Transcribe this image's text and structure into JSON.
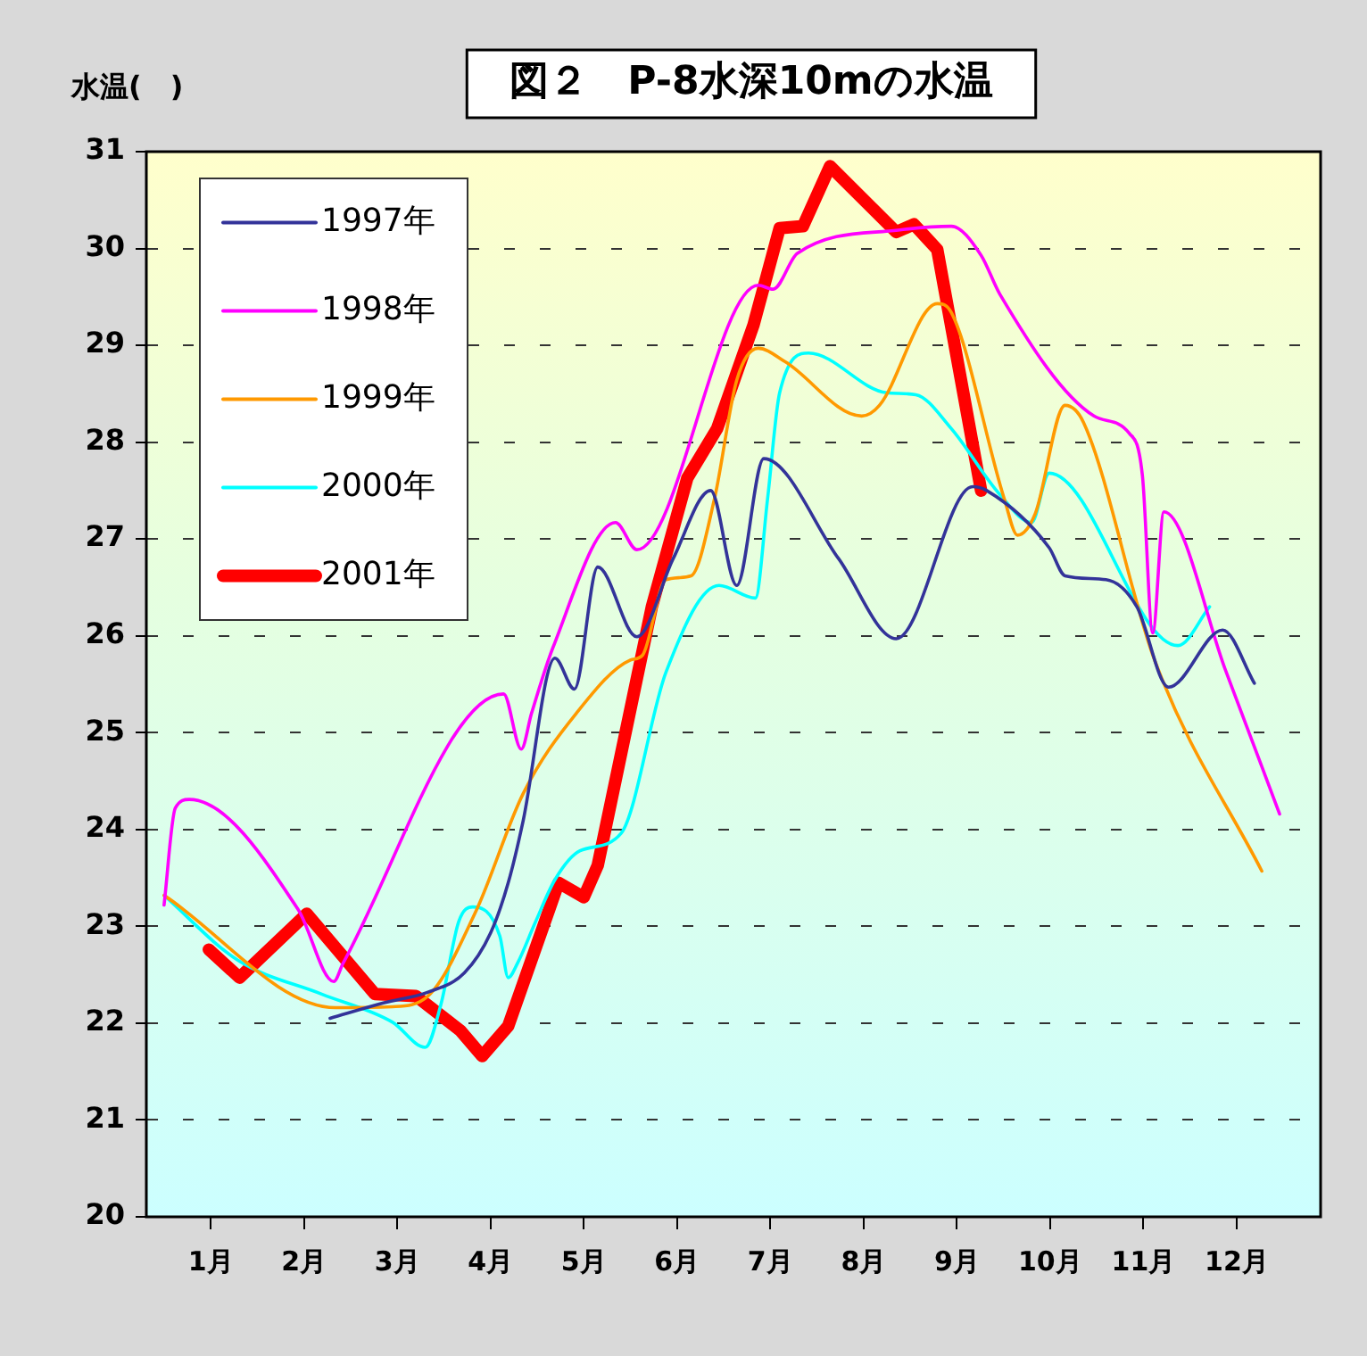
{
  "chart_data": {
    "type": "line",
    "title": "図２　P-8水深10mの水温",
    "ylabel": "水温(　)",
    "xlim": [
      0.31,
      12.9
    ],
    "xticks": [
      {
        "value": 1,
        "label": "1月"
      },
      {
        "value": 2,
        "label": "2月"
      },
      {
        "value": 3,
        "label": "3月"
      },
      {
        "value": 4,
        "label": "4月"
      },
      {
        "value": 5,
        "label": "5月"
      },
      {
        "value": 6,
        "label": "6月"
      },
      {
        "value": 7,
        "label": "7月"
      },
      {
        "value": 8,
        "label": "8月"
      },
      {
        "value": 9,
        "label": "9月"
      },
      {
        "value": 10,
        "label": "10月"
      },
      {
        "value": 11,
        "label": "11月"
      },
      {
        "value": 12,
        "label": "12月"
      }
    ],
    "ylim": [
      20,
      31
    ],
    "yticks": [
      20,
      21,
      22,
      23,
      24,
      25,
      26,
      27,
      28,
      29,
      30,
      31
    ],
    "grid": "y",
    "legend": "top left",
    "marker": "none",
    "line_style": "solid",
    "series": [
      {
        "name": "1997年",
        "color": "#333399",
        "x": [
          2.28,
          2.86,
          3.33,
          3.72,
          4.0,
          4.19,
          4.35,
          4.69,
          4.9,
          5.15,
          5.57,
          5.96,
          6.36,
          6.64,
          6.93,
          7.73,
          8.35,
          9.17,
          9.32,
          9.99,
          10.16,
          10.6,
          10.93,
          11.27,
          11.85,
          12.19
        ],
        "values": [
          22.05,
          22.21,
          22.32,
          22.52,
          22.93,
          23.45,
          24.09,
          25.77,
          25.45,
          26.71,
          25.99,
          26.8,
          27.5,
          26.52,
          27.83,
          26.8,
          25.97,
          27.54,
          27.5,
          26.91,
          26.62,
          26.58,
          26.3,
          25.47,
          26.06,
          25.51
        ]
      },
      {
        "name": "1998年",
        "color": "#ff00ff",
        "x": [
          0.5,
          0.62,
          0.77,
          1.94,
          2.32,
          2.42,
          4.14,
          4.33,
          4.44,
          4.67,
          5.34,
          5.57,
          6.87,
          7.03,
          7.29,
          8.37,
          8.94,
          9.26,
          9.46,
          10.47,
          10.85,
          10.99,
          11.1,
          11.22,
          11.89,
          12.46
        ],
        "values": [
          23.22,
          24.22,
          24.31,
          23.17,
          22.43,
          22.62,
          25.4,
          24.83,
          25.2,
          25.88,
          27.17,
          26.89,
          29.62,
          29.58,
          29.95,
          30.19,
          30.23,
          29.93,
          29.53,
          28.27,
          28.09,
          27.65,
          26.03,
          27.28,
          25.62,
          24.16
        ]
      },
      {
        "name": "1999年",
        "color": "#ff9900",
        "x": [
          0.5,
          2.34,
          2.95,
          3.33,
          3.85,
          4.35,
          4.92,
          5.5,
          5.63,
          5.88,
          6.15,
          6.4,
          6.64,
          6.87,
          7.16,
          7.98,
          8.17,
          8.79,
          8.94,
          9.51,
          9.65,
          9.84,
          10.16,
          10.36,
          11.12,
          12.27
        ],
        "values": [
          23.32,
          22.16,
          22.17,
          22.28,
          23.17,
          24.37,
          25.2,
          25.75,
          25.8,
          26.58,
          26.62,
          27.41,
          28.64,
          28.97,
          28.83,
          28.27,
          28.38,
          29.43,
          29.34,
          27.41,
          27.04,
          27.26,
          28.38,
          28.2,
          25.75,
          23.57
        ]
      },
      {
        "name": "2000年",
        "color": "#00ffff",
        "x": [
          0.5,
          1.29,
          2.19,
          2.95,
          3.3,
          3.47,
          3.66,
          3.81,
          4.1,
          4.19,
          4.29,
          4.48,
          4.69,
          4.96,
          5.4,
          5.88,
          6.45,
          6.84,
          6.97,
          7.1,
          7.41,
          8.25,
          8.56,
          8.94,
          9.46,
          9.8,
          9.99,
          11.37,
          11.71
        ],
        "values": [
          23.32,
          22.65,
          22.3,
          22.01,
          21.75,
          22.2,
          23.05,
          23.2,
          22.9,
          22.47,
          22.62,
          23.04,
          23.48,
          23.78,
          23.96,
          25.62,
          26.52,
          26.39,
          27.41,
          28.51,
          28.92,
          28.51,
          28.49,
          28.14,
          27.46,
          27.17,
          27.68,
          25.9,
          26.3
        ]
      },
      {
        "name": "2001年",
        "color": "#ff0000",
        "x": [
          0.98,
          1.31,
          2.03,
          2.76,
          3.2,
          3.68,
          3.91,
          4.19,
          4.73,
          5.0,
          5.15,
          5.73,
          6.11,
          6.43,
          6.82,
          7.1,
          7.35,
          7.64,
          8.35,
          8.54,
          8.79,
          9.26
        ],
        "values": [
          22.76,
          22.47,
          23.13,
          22.3,
          22.28,
          21.92,
          21.66,
          21.97,
          23.45,
          23.3,
          23.63,
          26.3,
          27.63,
          28.14,
          29.21,
          30.21,
          30.23,
          30.85,
          30.17,
          30.25,
          29.99,
          27.5
        ]
      }
    ]
  }
}
